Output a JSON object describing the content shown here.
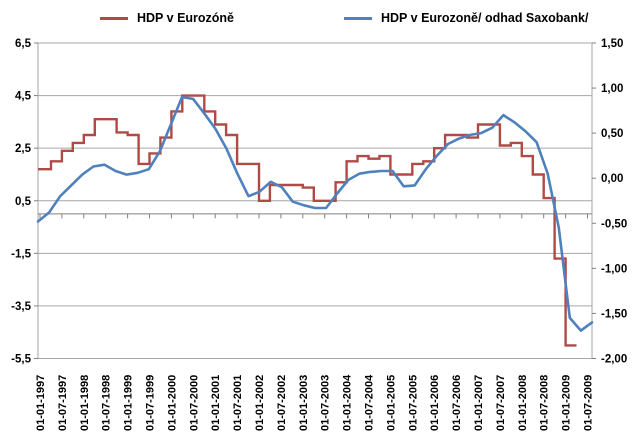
{
  "legend": {
    "series1_label": "HDP v Eurozóně",
    "series2_label": "HDP v Eurozoně/ odhad Saxobank/"
  },
  "colors": {
    "series1": "#B04A46",
    "series2": "#4F81BD",
    "gridline": "#A6A6A6",
    "axis_line": "#808080",
    "text": "#000000",
    "background": "#FFFFFF"
  },
  "chart_data": {
    "type": "line",
    "title": "",
    "x_unit": "quarter",
    "x_start": "1997Q1",
    "x_tick_labels": [
      "01-01-1997",
      "01-07-1997",
      "01-01-1998",
      "01-07-1998",
      "01-01-1999",
      "01-07-1999",
      "01-01-2000",
      "01-07-2000",
      "01-01-2001",
      "01-07-2001",
      "01-01-2002",
      "01-07-2002",
      "01-01-2003",
      "01-07-2003",
      "01-01-2004",
      "01-07-2004",
      "01-01-2005",
      "01-07-2005",
      "01-01-2006",
      "01-07-2006",
      "01-01-2007",
      "01-07-2007",
      "01-01-2008",
      "01-07-2008",
      "01-01-2009",
      "01-07-2009"
    ],
    "left_axis": {
      "min": -5.5,
      "max": 6.5,
      "tick_values": [
        6.5,
        4.5,
        2.5,
        0.5,
        -1.5,
        -3.5,
        -5.5
      ],
      "tick_labels": [
        "6,5",
        "4,5",
        "2,5",
        "0,5",
        "-1,5",
        "-3,5",
        "-5,5"
      ],
      "gridline_values": [
        4.5,
        2.5,
        0.5,
        -1.5,
        -3.5
      ],
      "category_axis_crosses_at": 0
    },
    "right_axis": {
      "min": -2.0,
      "max": 1.5,
      "tick_values": [
        1.5,
        1.0,
        0.5,
        0.0,
        -0.5,
        -1.0,
        -1.5,
        -2.0
      ],
      "tick_labels": [
        "1,50",
        "1,00",
        "0,50",
        "0,00",
        "-0,50",
        "-1,00",
        "-1,50",
        "-2,00"
      ]
    },
    "grid": "horizontal-only",
    "legend_position": "top",
    "series": [
      {
        "name": "HDP v Eurozóně",
        "axis": "left",
        "color": "#B04A46",
        "style": "step",
        "quarterly_values": [
          1.7,
          2.0,
          2.4,
          2.7,
          3.0,
          3.6,
          3.6,
          3.1,
          3.0,
          1.9,
          2.3,
          2.9,
          3.9,
          4.5,
          4.5,
          3.9,
          3.4,
          3.0,
          1.9,
          1.9,
          0.5,
          1.1,
          1.1,
          1.1,
          1.0,
          0.5,
          0.5,
          1.2,
          2.0,
          2.2,
          2.1,
          2.2,
          1.5,
          1.5,
          1.9,
          2.0,
          2.5,
          3.0,
          3.0,
          2.9,
          3.4,
          3.4,
          2.6,
          2.7,
          2.2,
          1.5,
          0.6,
          -1.7,
          -5.0
        ]
      },
      {
        "name": "HDP v Eurozoně/ odhad Saxobank/",
        "axis": "right",
        "color": "#4F81BD",
        "style": "smooth",
        "quarterly_values": [
          -0.48,
          -0.38,
          -0.2,
          -0.08,
          0.04,
          0.13,
          0.15,
          0.08,
          0.04,
          0.06,
          0.1,
          0.3,
          0.6,
          0.9,
          0.88,
          0.72,
          0.55,
          0.33,
          0.05,
          -0.2,
          -0.15,
          -0.04,
          -0.1,
          -0.26,
          -0.3,
          -0.33,
          -0.33,
          -0.17,
          -0.02,
          0.05,
          0.07,
          0.08,
          0.08,
          -0.09,
          -0.08,
          0.1,
          0.25,
          0.38,
          0.44,
          0.48,
          0.5,
          0.56,
          0.7,
          0.62,
          0.52,
          0.4,
          0.05,
          -0.55,
          -1.55,
          -1.69,
          -1.6
        ]
      }
    ]
  }
}
